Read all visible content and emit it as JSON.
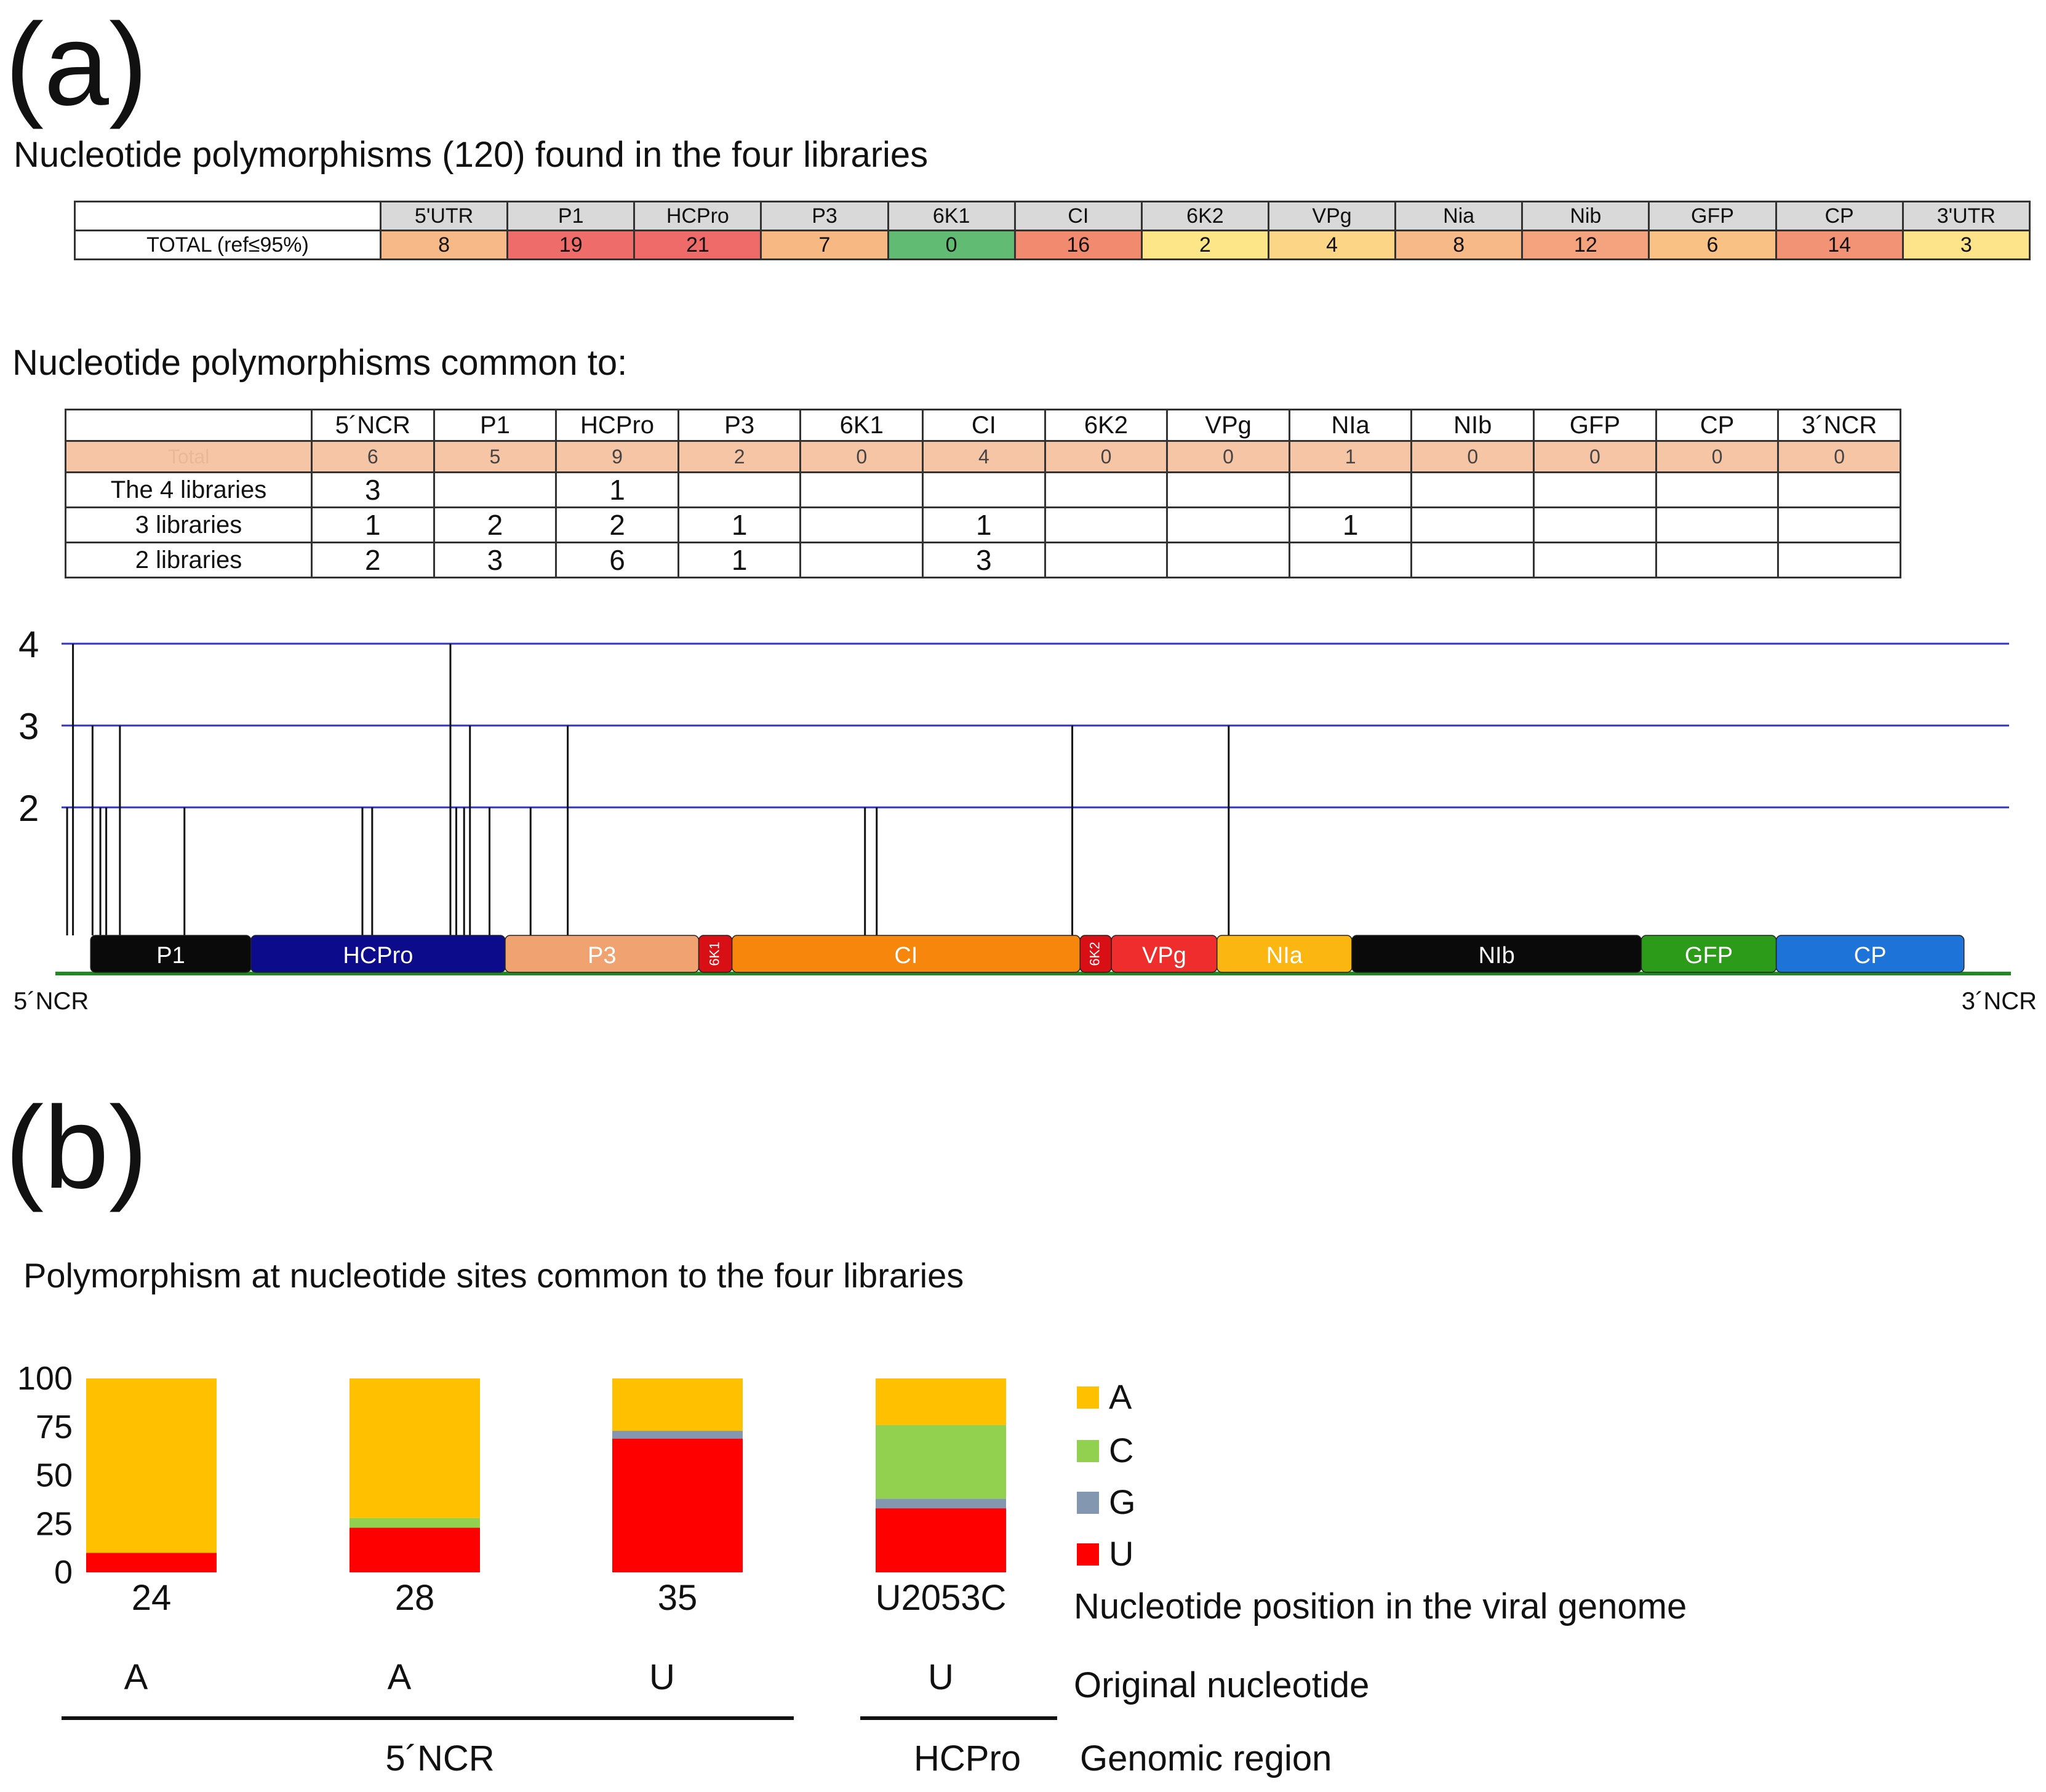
{
  "panel_a": {
    "label": "(a)",
    "table1_title": "Nucleotide polymorphisms (120) found in the four libraries",
    "table1": {
      "regions": [
        "5'UTR",
        "P1",
        "HCPro",
        "P3",
        "6K1",
        "CI",
        "6K2",
        "VPg",
        "Nia",
        "Nib",
        "GFP",
        "CP",
        "3'UTR"
      ],
      "row_label": "TOTAL  (ref≤95%)",
      "values": [
        "8",
        "19",
        "21",
        "7",
        "0",
        "16",
        "2",
        "4",
        "8",
        "12",
        "6",
        "14",
        "3"
      ],
      "colors": [
        "#f7b987",
        "#ee6d6a",
        "#ef6b69",
        "#f8b884",
        "#62bb73",
        "#f28a70",
        "#fde688",
        "#fdd587",
        "#f7b987",
        "#f5a27e",
        "#f9c184",
        "#f39376",
        "#fde38a"
      ]
    },
    "table2_title": "Nucleotide polymorphisms common to:",
    "table2": {
      "regions": [
        "5´NCR",
        "P1",
        "HCPro",
        "P3",
        "6K1",
        "CI",
        "6K2",
        "VPg",
        "NIa",
        "NIb",
        "GFP",
        "CP",
        "3´NCR"
      ],
      "total_label": "Total",
      "totals": [
        "6",
        "5",
        "9",
        "2",
        "0",
        "4",
        "0",
        "0",
        "1",
        "0",
        "0",
        "0",
        "0"
      ],
      "rows": [
        {
          "label": "The 4 libraries",
          "values": [
            "3",
            "",
            "1",
            "",
            "",
            "",
            "",
            "",
            "",
            "",
            "",
            "",
            ""
          ]
        },
        {
          "label": "3 libraries",
          "values": [
            "1",
            "2",
            "2",
            "1",
            "",
            "1",
            "",
            "",
            "1",
            "",
            "",
            "",
            ""
          ]
        },
        {
          "label": "2 libraries",
          "values": [
            "2",
            "3",
            "6",
            "1",
            "",
            "3",
            "",
            "",
            "",
            "",
            "",
            "",
            ""
          ]
        }
      ]
    },
    "genome_map": {
      "y_ticks": [
        "4",
        "3",
        "2"
      ],
      "label_5ncr": "5´NCR",
      "label_3ncr": "3´NCR",
      "genes": [
        {
          "name": "P1",
          "start": 1.8,
          "end": 10.0,
          "color": "#0a0a0a",
          "text_color": "#ffffff"
        },
        {
          "name": "HCPro",
          "start": 10.0,
          "end": 23.0,
          "color": "#0b0b8c",
          "text_color": "#ffffff"
        },
        {
          "name": "P3",
          "start": 23.0,
          "end": 32.9,
          "color": "#f0a371",
          "text_color": "#ffffff"
        },
        {
          "name": "6K1",
          "start": 32.9,
          "end": 34.6,
          "color": "#d90f16",
          "text_color": "#ffffff"
        },
        {
          "name": "CI",
          "start": 34.6,
          "end": 52.4,
          "color": "#f7860d",
          "text_color": "#ffffff"
        },
        {
          "name": "6K2",
          "start": 52.4,
          "end": 54.0,
          "color": "#d90f16",
          "text_color": "#ffffff"
        },
        {
          "name": "VPg",
          "start": 54.0,
          "end": 59.4,
          "color": "#ef2d2d",
          "text_color": "#ffffff"
        },
        {
          "name": "NIa",
          "start": 59.4,
          "end": 66.3,
          "color": "#fbb612",
          "text_color": "#ffffff"
        },
        {
          "name": "NIb",
          "start": 66.3,
          "end": 81.1,
          "color": "#0a0a0a",
          "text_color": "#ffffff"
        },
        {
          "name": "GFP",
          "start": 81.1,
          "end": 88.0,
          "color": "#2d9b1a",
          "text_color": "#ffffff"
        },
        {
          "name": "CP",
          "start": 88.0,
          "end": 97.6,
          "color": "#1e73d8",
          "text_color": "#ffffff"
        }
      ],
      "polymorphisms": [
        {
          "pos": 0.6,
          "level": 2
        },
        {
          "pos": 0.9,
          "level": 4
        },
        {
          "pos": 1.9,
          "level": 3
        },
        {
          "pos": 2.3,
          "level": 2
        },
        {
          "pos": 2.6,
          "level": 2
        },
        {
          "pos": 3.3,
          "level": 3
        },
        {
          "pos": 6.6,
          "level": 2
        },
        {
          "pos": 15.7,
          "level": 2
        },
        {
          "pos": 16.2,
          "level": 2
        },
        {
          "pos": 20.2,
          "level": 4
        },
        {
          "pos": 20.5,
          "level": 2
        },
        {
          "pos": 20.9,
          "level": 2
        },
        {
          "pos": 21.2,
          "level": 3
        },
        {
          "pos": 22.2,
          "level": 2
        },
        {
          "pos": 24.3,
          "level": 2
        },
        {
          "pos": 26.2,
          "level": 3
        },
        {
          "pos": 41.4,
          "level": 2
        },
        {
          "pos": 42.0,
          "level": 2
        },
        {
          "pos": 52.0,
          "level": 3
        },
        {
          "pos": 60.0,
          "level": 3
        }
      ]
    }
  },
  "panel_b": {
    "label": "(b)",
    "title": "Polymorphism at nucleotide sites common to the four libraries",
    "chart_data": {
      "type": "bar",
      "stacked": true,
      "title": "Polymorphism at nucleotide sites common to the four libraries",
      "ylim": [
        0,
        100
      ],
      "y_ticks": [
        "100",
        "75",
        "50",
        "25",
        "0"
      ],
      "categories": [
        "24",
        "28",
        "35",
        "U2053C"
      ],
      "original_nucleotide": [
        "A",
        "A",
        "U",
        "U"
      ],
      "series": [
        {
          "name": "U",
          "color": "#fe0000",
          "values": [
            10,
            23,
            69,
            33
          ]
        },
        {
          "name": "G",
          "color": "#8497b0",
          "values": [
            0,
            0,
            4,
            5
          ]
        },
        {
          "name": "C",
          "color": "#92d050",
          "values": [
            0,
            5,
            0,
            38
          ]
        },
        {
          "name": "A",
          "color": "#ffc000",
          "values": [
            90,
            72,
            27,
            24
          ]
        }
      ],
      "legend": [
        "A",
        "C",
        "G",
        "U"
      ],
      "legend_position": "right",
      "xlabel": "Nucleotide position in the viral genome",
      "row_label_original": "Original nucleotide",
      "row_label_region": "Genomic region",
      "regions": [
        "5´NCR",
        "HCPro"
      ]
    }
  }
}
